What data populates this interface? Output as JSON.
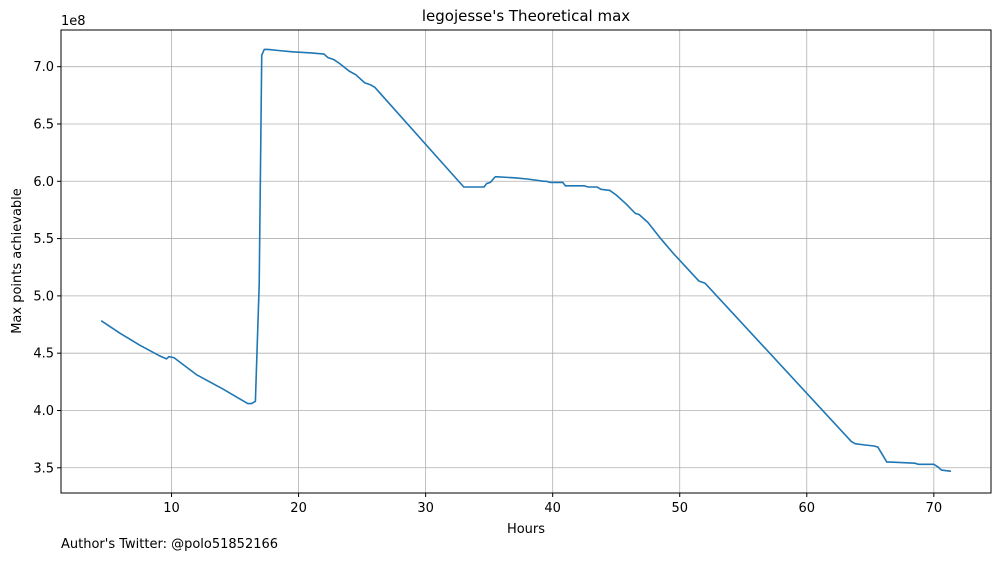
{
  "chart_data": {
    "type": "line",
    "title": "legojesse's Theoretical max",
    "xlabel": "Hours",
    "ylabel": "Max points achievable",
    "y_multiplier_label": "1e8",
    "xlim": [
      1.3,
      74.5
    ],
    "ylim": [
      3.28,
      7.32
    ],
    "xticks": [
      10,
      20,
      30,
      40,
      50,
      60,
      70
    ],
    "yticks": [
      3.5,
      4.0,
      4.5,
      5.0,
      5.5,
      6.0,
      6.5,
      7.0
    ],
    "grid": true,
    "line_color": "#1f77b4",
    "series": [
      {
        "x": [
          4.5,
          6,
          7.5,
          9,
          9.6,
          9.8,
          10.2,
          12,
          14,
          16,
          16.3,
          16.6,
          16.9,
          17.1,
          17.3,
          17.6,
          18.5,
          19.5,
          21,
          22,
          22.3,
          22.8,
          23.2,
          24,
          24.5,
          25.2,
          25.7,
          26,
          33,
          33.5,
          34.6,
          34.8,
          35.1,
          35.4,
          35.5,
          37,
          38,
          39.3,
          39.5,
          39.8,
          40.8,
          41,
          42.5,
          42.8,
          43.5,
          43.8,
          44.5,
          45,
          45.8,
          46.5,
          46.8,
          47.5,
          48.5,
          49.5,
          50.5,
          51.5,
          52,
          52.5,
          63.5,
          63.8,
          64.5,
          65.3,
          65.6,
          66.3,
          66.6,
          68.5,
          68.8,
          70,
          70.3,
          70.6,
          71.3
        ],
        "y": [
          4.78,
          4.67,
          4.57,
          4.48,
          4.45,
          4.47,
          4.46,
          4.31,
          4.19,
          4.06,
          4.06,
          4.08,
          5.1,
          7.1,
          7.15,
          7.15,
          7.14,
          7.13,
          7.12,
          7.11,
          7.08,
          7.06,
          7.03,
          6.96,
          6.93,
          6.86,
          6.84,
          6.82,
          5.95,
          5.95,
          5.95,
          5.98,
          5.99,
          6.03,
          6.04,
          6.03,
          6.02,
          6.0,
          6.0,
          5.99,
          5.99,
          5.96,
          5.96,
          5.95,
          5.95,
          5.93,
          5.92,
          5.88,
          5.8,
          5.72,
          5.71,
          5.64,
          5.5,
          5.37,
          5.25,
          5.13,
          5.11,
          5.05,
          3.73,
          3.71,
          3.7,
          3.69,
          3.68,
          3.55,
          3.55,
          3.54,
          3.53,
          3.53,
          3.51,
          3.48,
          3.47
        ]
      }
    ]
  },
  "footnote": "Author's Twitter: @polo51852166"
}
